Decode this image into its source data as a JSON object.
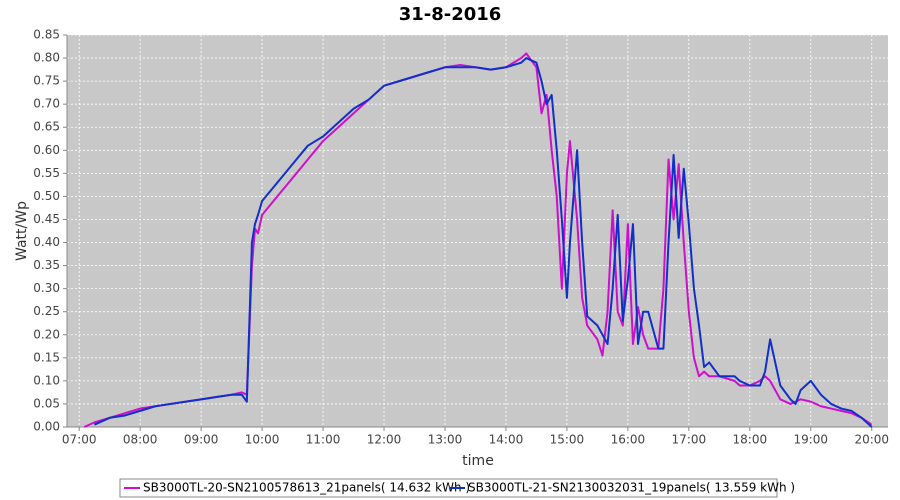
{
  "chart_data": {
    "type": "line",
    "title": "31-8-2016",
    "x_label": "time",
    "y_label": "Watt/Wp",
    "x": [
      "07:05",
      "07:15",
      "07:30",
      "07:45",
      "08:00",
      "08:15",
      "08:30",
      "08:45",
      "09:00",
      "09:15",
      "09:30",
      "09:40",
      "09:45",
      "09:50",
      "09:53",
      "09:56",
      "10:00",
      "10:15",
      "10:30",
      "10:45",
      "11:00",
      "11:15",
      "11:30",
      "11:45",
      "12:00",
      "12:15",
      "12:30",
      "12:45",
      "13:00",
      "13:15",
      "13:30",
      "13:45",
      "14:00",
      "14:15",
      "14:20",
      "14:30",
      "14:35",
      "14:40",
      "14:45",
      "14:50",
      "14:55",
      "15:00",
      "15:03",
      "15:10",
      "15:15",
      "15:20",
      "15:30",
      "15:35",
      "15:40",
      "15:45",
      "15:50",
      "15:55",
      "16:00",
      "16:05",
      "16:10",
      "16:15",
      "16:20",
      "16:30",
      "16:35",
      "16:40",
      "16:45",
      "16:50",
      "16:55",
      "17:00",
      "17:05",
      "17:10",
      "17:15",
      "17:20",
      "17:30",
      "17:45",
      "17:50",
      "18:00",
      "18:10",
      "18:15",
      "18:20",
      "18:30",
      "18:40",
      "18:45",
      "18:50",
      "19:00",
      "19:10",
      "19:20",
      "19:30",
      "19:40",
      "19:50",
      "20:00"
    ],
    "series": [
      {
        "name": "SB3000TL-20-SN2100578613_21panels( 14.632 kWh )",
        "color": "#cc10cc",
        "values": [
          0.0,
          0.01,
          0.02,
          0.03,
          0.04,
          0.045,
          0.05,
          0.055,
          0.06,
          0.065,
          0.07,
          0.075,
          0.07,
          0.35,
          0.43,
          0.42,
          0.46,
          0.5,
          0.54,
          0.58,
          0.62,
          0.65,
          0.68,
          0.71,
          0.74,
          0.75,
          0.76,
          0.77,
          0.78,
          0.785,
          0.78,
          0.775,
          0.78,
          0.8,
          0.81,
          0.78,
          0.68,
          0.72,
          0.6,
          0.5,
          0.3,
          0.55,
          0.62,
          0.45,
          0.28,
          0.22,
          0.19,
          0.155,
          0.25,
          0.47,
          0.25,
          0.22,
          0.44,
          0.18,
          0.26,
          0.2,
          0.17,
          0.17,
          0.3,
          0.58,
          0.45,
          0.57,
          0.4,
          0.25,
          0.15,
          0.11,
          0.12,
          0.11,
          0.11,
          0.1,
          0.09,
          0.09,
          0.1,
          0.11,
          0.1,
          0.06,
          0.05,
          0.055,
          0.06,
          0.055,
          0.045,
          0.04,
          0.035,
          0.03,
          0.02,
          0.005
        ]
      },
      {
        "name": "SB3000TL-21-SN2130032031_19panels( 13.559 kWh )",
        "color": "#1030c8",
        "values": [
          null,
          0.005,
          0.02,
          0.025,
          0.035,
          0.045,
          0.05,
          0.055,
          0.06,
          0.065,
          0.07,
          0.07,
          0.055,
          0.4,
          0.44,
          0.46,
          0.49,
          0.53,
          0.57,
          0.61,
          0.63,
          0.66,
          0.69,
          0.71,
          0.74,
          0.75,
          0.76,
          0.77,
          0.78,
          0.78,
          0.78,
          0.775,
          0.78,
          0.79,
          0.8,
          0.79,
          0.75,
          0.7,
          0.72,
          0.6,
          0.45,
          0.28,
          0.4,
          0.6,
          0.4,
          0.24,
          0.22,
          0.2,
          0.18,
          0.3,
          0.46,
          0.23,
          0.32,
          0.44,
          0.18,
          0.25,
          0.25,
          0.17,
          0.17,
          0.4,
          0.59,
          0.41,
          0.56,
          0.44,
          0.3,
          0.22,
          0.13,
          0.14,
          0.11,
          0.11,
          0.1,
          0.09,
          0.09,
          0.12,
          0.19,
          0.09,
          0.06,
          0.05,
          0.08,
          0.1,
          0.07,
          0.05,
          0.04,
          0.035,
          0.02,
          0.0
        ]
      }
    ],
    "xlim": [
      "06:48",
      "20:16"
    ],
    "xticks": [
      "07:00",
      "08:00",
      "09:00",
      "10:00",
      "11:00",
      "12:00",
      "13:00",
      "14:00",
      "15:00",
      "16:00",
      "17:00",
      "18:00",
      "19:00",
      "20:00"
    ],
    "ylim": [
      0,
      0.85
    ],
    "yticks": [
      {
        "value": 0,
        "label": "0.00"
      },
      {
        "value": 0.05,
        "label": "0.05"
      },
      {
        "value": 0.1,
        "label": "0.10"
      },
      {
        "value": 0.15,
        "label": "0.15"
      },
      {
        "value": 0.2,
        "label": "0.20"
      },
      {
        "value": 0.25,
        "label": "0.25"
      },
      {
        "value": 0.3,
        "label": "0.30"
      },
      {
        "value": 0.35,
        "label": "0.35"
      },
      {
        "value": 0.4,
        "label": "0.40"
      },
      {
        "value": 0.45,
        "label": "0.45"
      },
      {
        "value": 0.5,
        "label": "0.50"
      },
      {
        "value": 0.55,
        "label": "0.55"
      },
      {
        "value": 0.6,
        "label": "0.60"
      },
      {
        "value": 0.65,
        "label": "0.65"
      },
      {
        "value": 0.7,
        "label": "0.70"
      },
      {
        "value": 0.75,
        "label": "0.75"
      },
      {
        "value": 0.8,
        "label": "0.80"
      },
      {
        "value": 0.85,
        "label": "0.85"
      }
    ],
    "grid": true,
    "legend": "bottom"
  }
}
